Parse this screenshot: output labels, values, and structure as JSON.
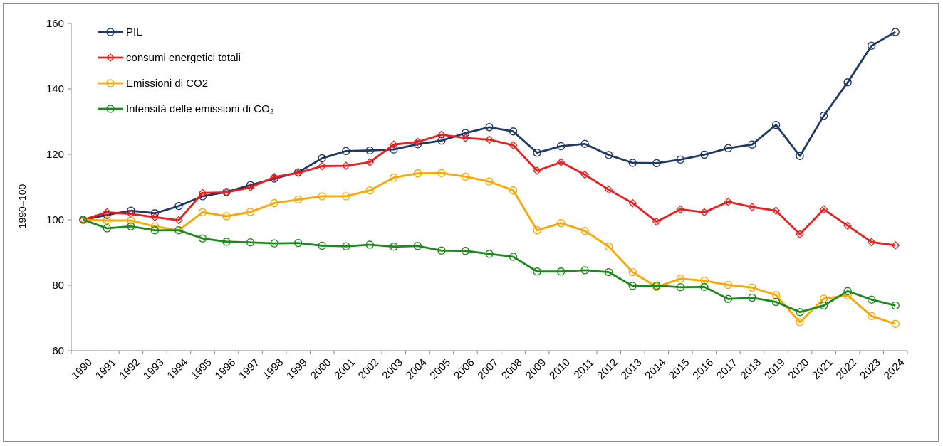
{
  "chart_data": {
    "type": "line",
    "ylabel": "1990=100",
    "ylim": [
      60,
      160
    ],
    "yticks": [
      60,
      80,
      100,
      120,
      140,
      160
    ],
    "grid": false,
    "legend_position": "top-left",
    "categories": [
      "1990",
      "1991",
      "1992",
      "1993",
      "1994",
      "1995",
      "1996",
      "1997",
      "1998",
      "1999",
      "2000",
      "2001",
      "2002",
      "2003",
      "2004",
      "2005",
      "2006",
      "2007",
      "2008",
      "2009",
      "2010",
      "2011",
      "2012",
      "2013",
      "2014",
      "2015",
      "2016",
      "2017",
      "2018",
      "2019",
      "2020",
      "2021",
      "2022",
      "2023",
      "2024"
    ],
    "series": [
      {
        "name": "PIL",
        "color": "#1f3864",
        "marker": "circle",
        "values": [
          100.0,
          101.5,
          102.8,
          102.0,
          104.2,
          107.2,
          108.5,
          110.6,
          112.6,
          114.5,
          118.8,
          121.0,
          121.2,
          121.5,
          123.1,
          124.2,
          126.5,
          128.3,
          127.0,
          120.5,
          122.5,
          123.2,
          119.8,
          117.4,
          117.3,
          118.4,
          119.9,
          121.9,
          123.0,
          129.0,
          119.5,
          131.8,
          142.0,
          153.2,
          157.4
        ]
      },
      {
        "name": "consumi energetici totali",
        "color": "#ee1c1c",
        "marker": "diamond",
        "values": [
          100.0,
          102.3,
          101.8,
          100.8,
          99.9,
          108.2,
          108.4,
          109.9,
          113.1,
          114.3,
          116.4,
          116.5,
          117.6,
          123.0,
          123.8,
          126.0,
          125.0,
          124.5,
          122.8,
          115.0,
          117.6,
          113.8,
          109.2,
          105.1,
          99.4,
          103.2,
          102.3,
          105.5,
          103.9,
          102.8,
          95.6,
          103.2,
          98.2,
          93.2,
          92.2
        ]
      },
      {
        "name": "Emissioni di CO2",
        "color": "#ffa500",
        "marker": "circle",
        "values": [
          100.0,
          99.8,
          99.8,
          98.0,
          96.8,
          102.3,
          101.1,
          102.4,
          105.1,
          106.2,
          107.2,
          107.2,
          109.0,
          112.9,
          114.2,
          114.3,
          113.2,
          111.7,
          109.0,
          96.8,
          99.0,
          96.6,
          91.8,
          84.0,
          79.5,
          82.0,
          81.4,
          80.1,
          79.3,
          77.0,
          68.7,
          75.9,
          76.9,
          70.6,
          68.2
        ]
      },
      {
        "name": "Intensità delle emissioni di CO₂",
        "color": "#1a8a1a",
        "marker": "circle",
        "values": [
          100.0,
          97.4,
          98.0,
          96.8,
          96.8,
          94.3,
          93.3,
          93.1,
          92.8,
          92.9,
          92.1,
          91.9,
          92.4,
          91.8,
          92.0,
          90.6,
          90.5,
          89.6,
          88.7,
          84.2,
          84.2,
          84.6,
          84.0,
          79.8,
          79.9,
          79.4,
          79.5,
          75.8,
          76.2,
          74.9,
          71.8,
          73.8,
          78.2,
          75.6,
          73.8
        ]
      }
    ]
  }
}
